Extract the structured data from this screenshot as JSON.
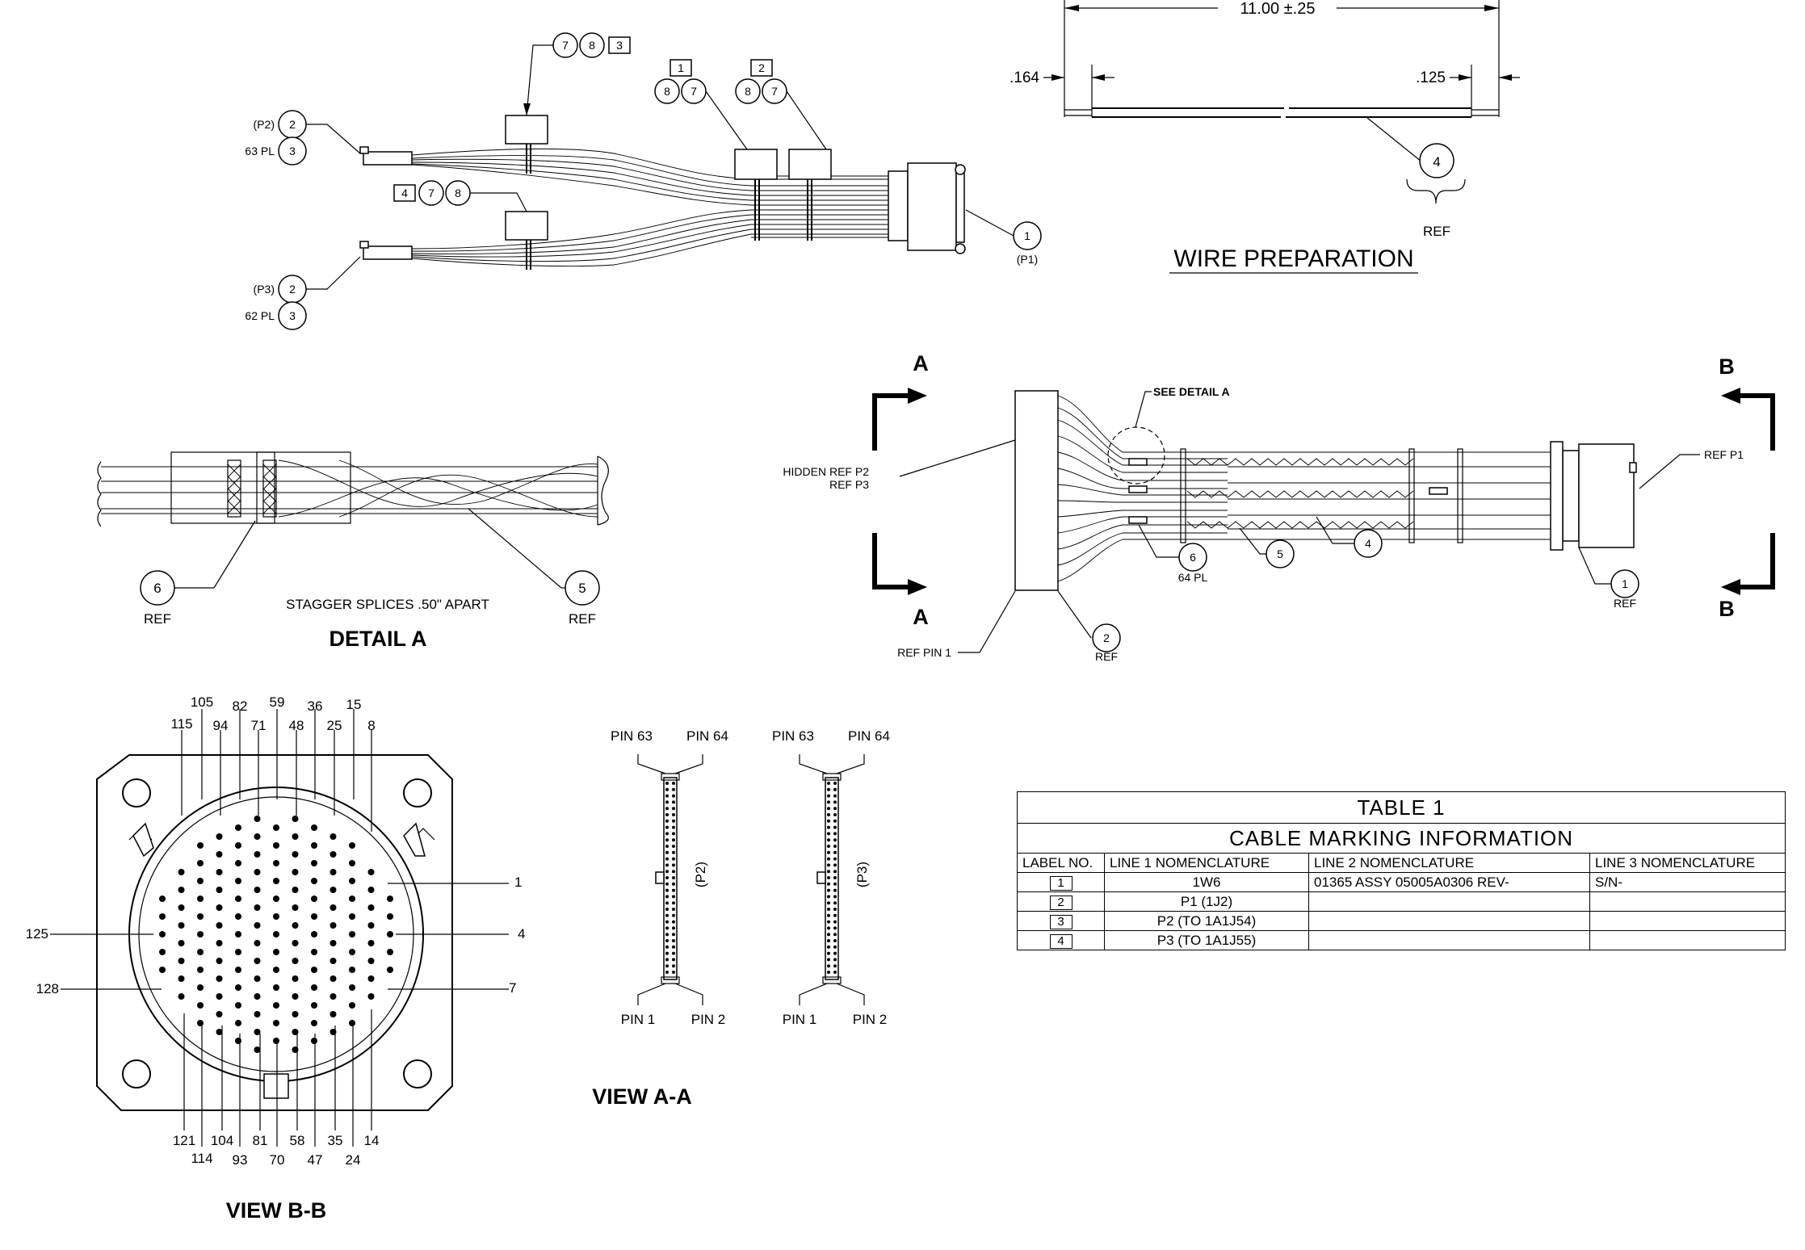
{
  "wire_prep": {
    "dim_overall": "11.00 ±.25",
    "dim_left": ".164",
    "dim_right": ".125",
    "balloon": "4",
    "ref": "REF",
    "title": "WIRE PREPARATION"
  },
  "top_assembly": {
    "p2_label": "(P2)",
    "p2_balloon_a": "2",
    "p2_qty": "63 PL",
    "p2_balloon_b": "3",
    "p3_label": "(P3)",
    "p3_balloon_a": "2",
    "p3_qty": "62 PL",
    "p3_balloon_b": "3",
    "tag_upper": [
      "7",
      "8",
      "3"
    ],
    "tag_lower": [
      "4",
      "7",
      "8"
    ],
    "tag_mid1": [
      "1",
      "8",
      "7"
    ],
    "tag_mid2": [
      "2",
      "8",
      "7"
    ],
    "p1_balloon": "1",
    "p1_label": "(P1)"
  },
  "detail_a": {
    "balloon_left": "6",
    "ref_left": "REF",
    "note": "STAGGER SPLICES .50\" APART",
    "balloon_right": "5",
    "ref_right": "REF",
    "title": "DETAIL A"
  },
  "side_view": {
    "section_a": "A",
    "section_b": "B",
    "see_detail": "SEE DETAIL A",
    "hidden_ref_1": "HIDDEN REF P2",
    "hidden_ref_2": "REF P3",
    "ref_p1": "REF P1",
    "ref_pin1": "REF PIN 1",
    "balloon_2": "2",
    "ref_2": "REF",
    "balloon_6": "6",
    "qty_6": "64 PL",
    "balloon_5": "5",
    "balloon_4": "4",
    "balloon_1": "1",
    "ref_1": "REF"
  },
  "view_bb": {
    "title": "VIEW B-B",
    "top_row1": [
      "105",
      "82",
      "59",
      "36",
      "15"
    ],
    "top_row2": [
      "115",
      "94",
      "71",
      "48",
      "25",
      "8"
    ],
    "right": [
      "1",
      "4",
      "7"
    ],
    "left": [
      "125",
      "128"
    ],
    "bottom_row1": [
      "121",
      "104",
      "81",
      "58",
      "35",
      "14"
    ],
    "bottom_row2": [
      "114",
      "93",
      "70",
      "47",
      "24"
    ]
  },
  "view_aa": {
    "title": "VIEW A-A",
    "pin63": "PIN 63",
    "pin64": "PIN 64",
    "pin1": "PIN 1",
    "pin2": "PIN 2",
    "p2": "(P2)",
    "p3": "(P3)"
  },
  "table": {
    "title": "TABLE 1",
    "subtitle": "CABLE MARKING INFORMATION",
    "headers": [
      "LABEL NO.",
      "LINE 1 NOMENCLATURE",
      "LINE 2 NOMENCLATURE",
      "LINE 3 NOMENCLATURE"
    ],
    "rows": [
      {
        "label": "1",
        "line1": "1W6",
        "line2": "01365 ASSY 05005A0306 REV-",
        "line3": "S/N-"
      },
      {
        "label": "2",
        "line1": "P1 (1J2)",
        "line2": "",
        "line3": ""
      },
      {
        "label": "3",
        "line1": "P2 (TO 1A1J54)",
        "line2": "",
        "line3": ""
      },
      {
        "label": "4",
        "line1": "P3 (TO 1A1J55)",
        "line2": "",
        "line3": ""
      }
    ]
  }
}
